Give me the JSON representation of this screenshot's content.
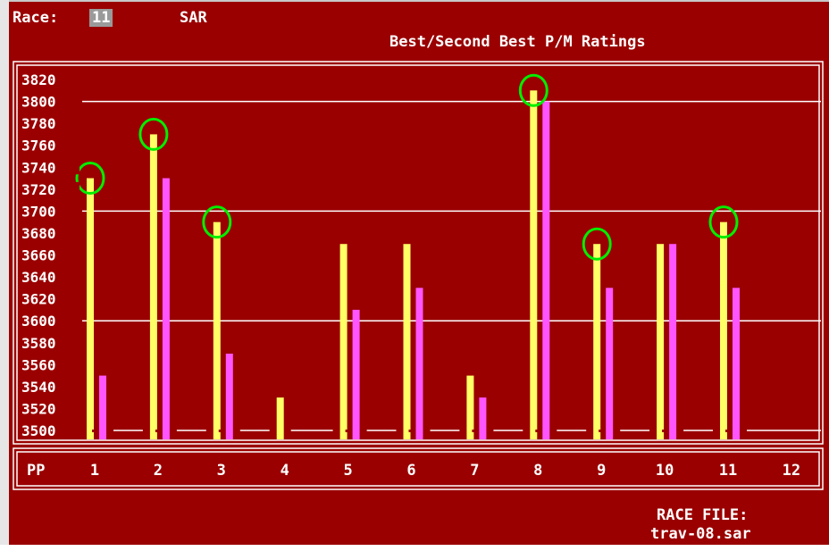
{
  "header": {
    "race_label": "Race:",
    "race_number": "11",
    "track": "SAR",
    "title": "Best/Second Best P/M Ratings"
  },
  "footer": {
    "race_file_label": "RACE FILE:",
    "race_file_name": "trav-08.sar"
  },
  "colors": {
    "background": "#9a0000",
    "best": "#ffff66",
    "second_best": "#ff55ff",
    "circle": "#00ee00",
    "frame": "#ffffff",
    "grid": "#ffffff"
  },
  "chart_data": {
    "type": "bar",
    "title": "Best/Second Best P/M Ratings",
    "xlabel": "PP",
    "ylabel": "",
    "ylim": [
      3500,
      3820
    ],
    "yticks": [
      3820,
      3800,
      3780,
      3760,
      3740,
      3720,
      3700,
      3680,
      3660,
      3640,
      3620,
      3600,
      3580,
      3560,
      3540,
      3520,
      3500
    ],
    "gridlines": [
      3800,
      3700,
      3600,
      3500
    ],
    "categories": [
      "1",
      "2",
      "3",
      "4",
      "5",
      "6",
      "7",
      "8",
      "9",
      "10",
      "11",
      "12"
    ],
    "series": [
      {
        "key": "best",
        "values": [
          3730,
          3770,
          3690,
          3530,
          3670,
          3670,
          3550,
          3810,
          3670,
          3670,
          3690,
          null
        ]
      },
      {
        "key": "second_best",
        "values": [
          3550,
          3730,
          3570,
          null,
          3610,
          3630,
          3530,
          3800,
          3630,
          3670,
          3630,
          null
        ]
      }
    ],
    "circled": [
      "1",
      "2",
      "3",
      "8",
      "9",
      "11"
    ]
  }
}
